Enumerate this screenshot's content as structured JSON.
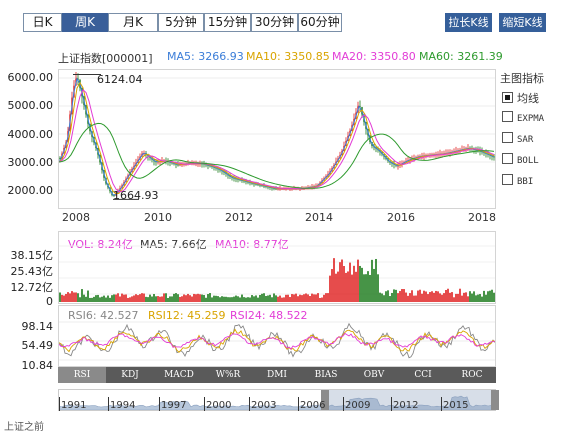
{
  "period_tabs": [
    {
      "label": "日K",
      "active": false
    },
    {
      "label": "周K",
      "active": true
    },
    {
      "label": "月K",
      "active": false
    },
    {
      "label": "5分钟",
      "active": false
    },
    {
      "label": "15分钟",
      "active": false
    },
    {
      "label": "30分钟",
      "active": false
    },
    {
      "label": "60分钟",
      "active": false
    }
  ],
  "zoom_buttons": {
    "stretch": "拉长K线",
    "shorten": "缩短K线"
  },
  "legend": {
    "name": "上证指数[000001]",
    "ma5": "MA5: 3266.93",
    "ma10": "MA10: 3350.85",
    "ma20": "MA20: 3350.80",
    "ma60": "MA60: 3261.39"
  },
  "colors": {
    "ma5": "#3b7dd8",
    "ma10": "#d9a400",
    "ma20": "#e23cd6",
    "ma60": "#2e9a2e",
    "up": "#e02020",
    "down": "#1a7a1a",
    "volume_ma5": "#333333"
  },
  "main_chart": {
    "y_ticks": [
      "6000.00",
      "5000.00",
      "4000.00",
      "3000.00",
      "2000.00"
    ],
    "y_values": [
      6000,
      5000,
      4000,
      3000,
      2000
    ],
    "x_ticks": [
      "2008",
      "2010",
      "2012",
      "2014",
      "2016",
      "2018"
    ],
    "high_label": "6124.04",
    "low_label": "1664.93"
  },
  "indicator_panel": {
    "title": "主图指标",
    "items": [
      {
        "label": "均线",
        "checked": true
      },
      {
        "label": "EXPMA",
        "checked": false
      },
      {
        "label": "SAR",
        "checked": false
      },
      {
        "label": "BOLL",
        "checked": false
      },
      {
        "label": "BBI",
        "checked": false
      }
    ]
  },
  "volume": {
    "vol": "VOL: 8.24亿",
    "ma5": "MA5: 7.66亿",
    "ma10": "MA10: 8.77亿",
    "y_ticks": [
      "38.15亿",
      "25.43亿",
      "12.72亿",
      "0"
    ]
  },
  "rsi": {
    "rsi6": "RSI6: 42.527",
    "rsi12": "RSI12: 45.259",
    "rsi24": "RSI24: 48.522",
    "y_ticks": [
      "98.14",
      "54.49",
      "10.84"
    ]
  },
  "indicator_tabs": [
    {
      "label": "RSI",
      "active": true
    },
    {
      "label": "KDJ",
      "active": false
    },
    {
      "label": "MACD",
      "active": false
    },
    {
      "label": "W%R",
      "active": false
    },
    {
      "label": "DMI",
      "active": false
    },
    {
      "label": "BIAS",
      "active": false
    },
    {
      "label": "OBV",
      "active": false
    },
    {
      "label": "CCI",
      "active": false
    },
    {
      "label": "ROC",
      "active": false
    }
  ],
  "navigator": {
    "years": [
      "1991",
      "1994",
      "1997",
      "2000",
      "2003",
      "2006",
      "2009",
      "2012",
      "2015"
    ]
  },
  "footer_text": "上证之前"
}
